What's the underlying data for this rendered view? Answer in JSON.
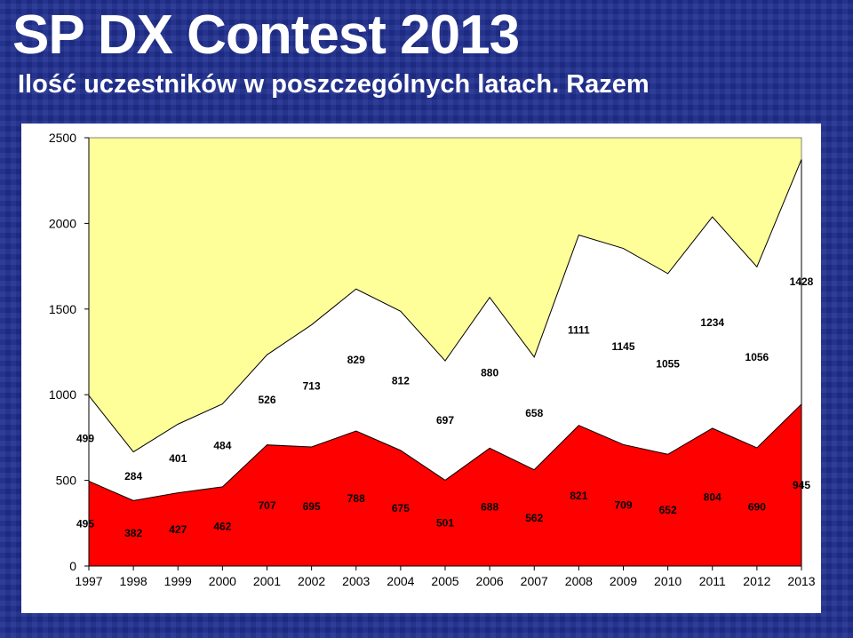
{
  "header": {
    "title": "SP DX Contest 2013",
    "subtitle": "Ilość uczestników w poszczególnych latach. Razem"
  },
  "chart_data": {
    "type": "area",
    "stacked": true,
    "categories": [
      "1997",
      "1998",
      "1999",
      "2000",
      "2001",
      "2002",
      "2003",
      "2004",
      "2005",
      "2006",
      "2007",
      "2008",
      "2009",
      "2010",
      "2011",
      "2012",
      "2013"
    ],
    "series": [
      {
        "values": [
          495,
          382,
          427,
          462,
          707,
          695,
          788,
          675,
          501,
          688,
          562,
          821,
          709,
          652,
          804,
          690,
          945
        ],
        "color": "#ff0000"
      },
      {
        "values": [
          499,
          284,
          401,
          484,
          526,
          713,
          829,
          812,
          697,
          880,
          658,
          1111,
          1145,
          1055,
          1234,
          1056,
          1428
        ],
        "color": "#ffffff"
      }
    ],
    "ylim": [
      0,
      2500
    ],
    "yticks": [
      0,
      500,
      1000,
      1500,
      2000,
      2500
    ],
    "plot_background": "#ffff99",
    "grid": false
  }
}
